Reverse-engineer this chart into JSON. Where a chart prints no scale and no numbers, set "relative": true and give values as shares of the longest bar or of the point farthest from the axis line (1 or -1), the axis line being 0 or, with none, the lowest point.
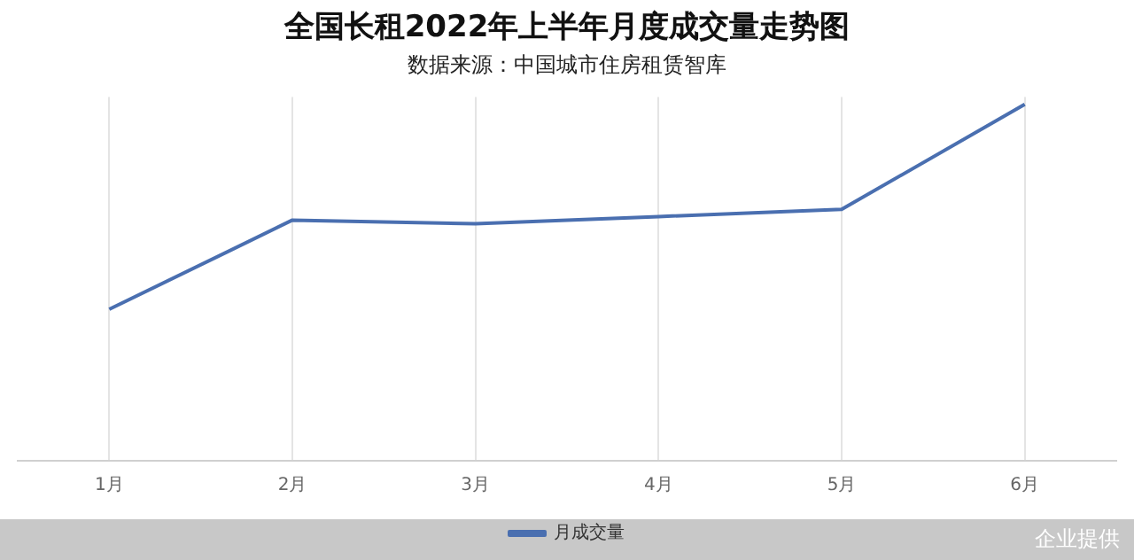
{
  "chart_data": {
    "type": "line",
    "title": "全国长租2022年上半年月度成交量走势图",
    "subtitle": "数据来源：中国城市住房租赁智库",
    "categories": [
      "1月",
      "2月",
      "3月",
      "4月",
      "5月",
      "6月"
    ],
    "relative": true,
    "series": [
      {
        "name": "月成交量",
        "color": "#4a6fb0",
        "values": [
          0.425,
          0.675,
          0.665,
          0.685,
          0.705,
          1
        ]
      }
    ],
    "grid": "x",
    "legend": "bottom",
    "marker": "none",
    "line_style": "solid",
    "annotations": [
      "企业提供"
    ]
  }
}
